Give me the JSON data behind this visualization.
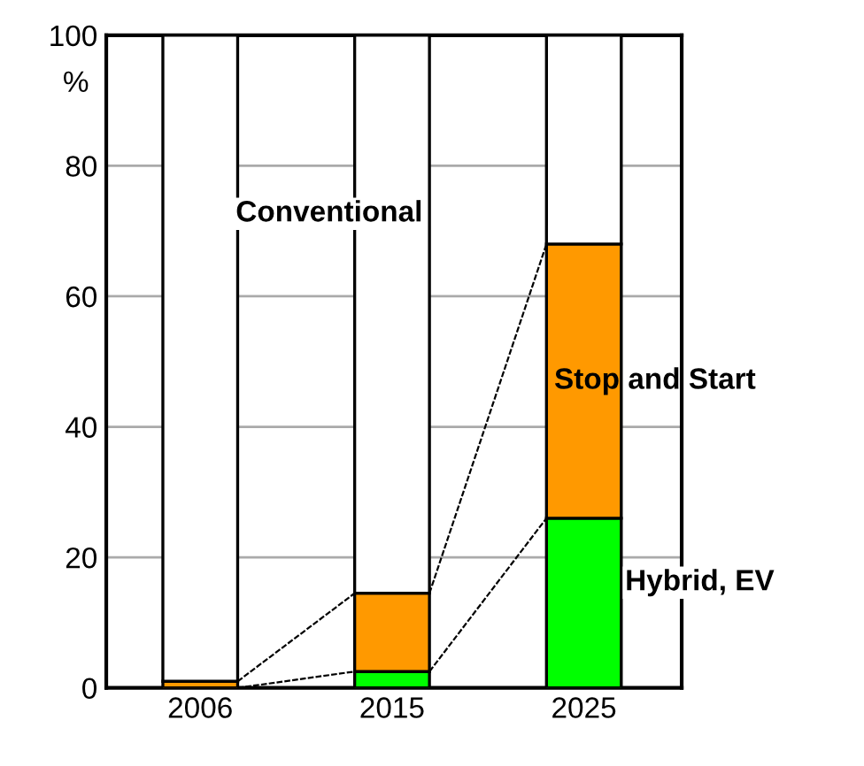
{
  "chart_data": {
    "type": "bar",
    "stacked": true,
    "ylabel": "%",
    "categories": [
      "2006",
      "2015",
      "2025"
    ],
    "series": [
      {
        "name": "Hybrid, EV",
        "color": "#00ff00",
        "values": [
          null,
          2.5,
          26
        ]
      },
      {
        "name": "Stop and Start",
        "color": "#ff9900",
        "values": [
          1,
          12,
          42
        ]
      },
      {
        "name": "Conventional",
        "color": "#ffffff",
        "values": [
          99,
          85.5,
          32
        ]
      }
    ],
    "ylim": [
      0,
      100
    ],
    "yticks": [
      0,
      20,
      40,
      60,
      80,
      100
    ],
    "grid": "y",
    "legend": false
  }
}
